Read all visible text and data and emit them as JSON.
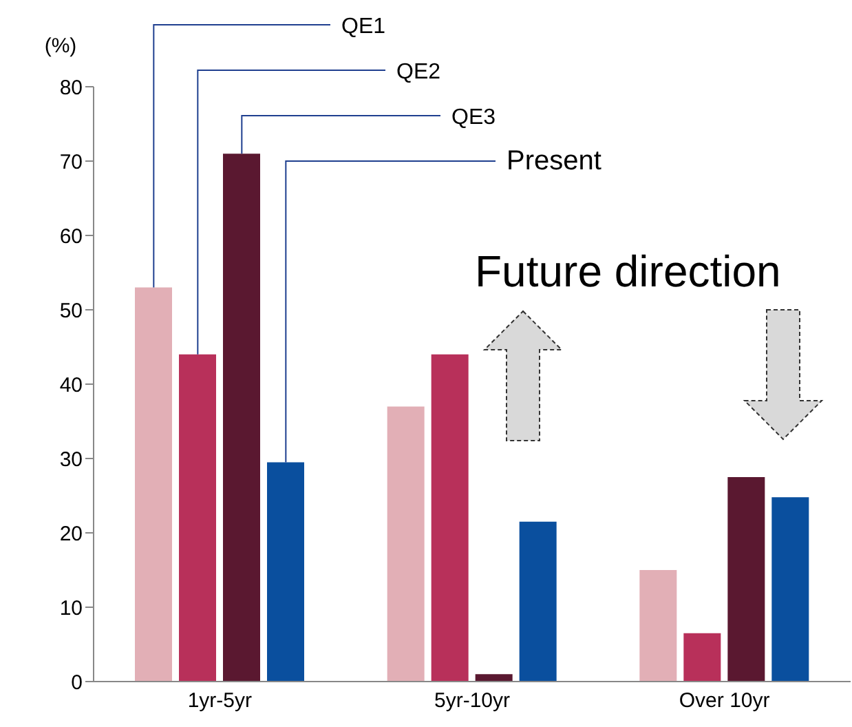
{
  "chart_data": {
    "type": "bar",
    "ylabel": "(%)",
    "categories": [
      "1yr-5yr",
      "5yr-10yr",
      "Over 10yr"
    ],
    "series": [
      {
        "name": "QE1",
        "color": "#e2afb6",
        "values": [
          53,
          37,
          15
        ]
      },
      {
        "name": "QE2",
        "color": "#b8305a",
        "values": [
          44,
          44,
          6.5
        ]
      },
      {
        "name": "QE3",
        "color": "#5a1830",
        "values": [
          71,
          1,
          27.5
        ]
      },
      {
        "name": "Present",
        "color": "#0a4f9e",
        "values": [
          29.5,
          21.5,
          24.8
        ]
      }
    ],
    "ylim": [
      0,
      80
    ],
    "yticks": [
      0,
      10,
      20,
      30,
      40,
      50,
      60,
      70,
      80
    ],
    "grid": false,
    "legend": false,
    "annotations": [
      "Future direction"
    ]
  }
}
